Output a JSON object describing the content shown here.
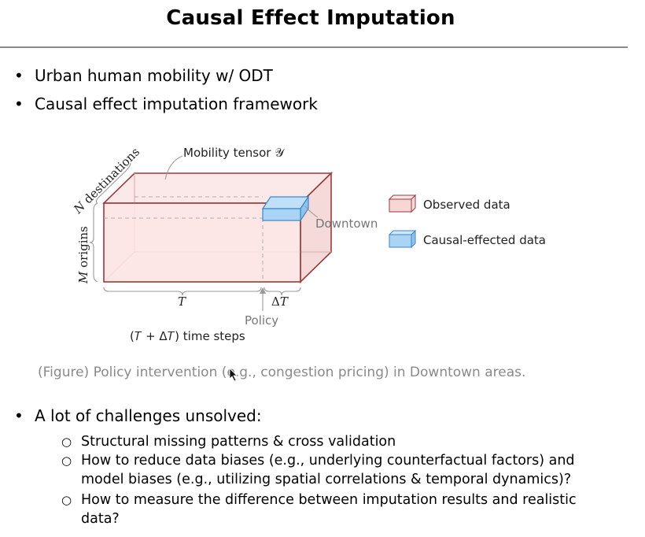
{
  "slide": {
    "title": "Causal Effect Imputation",
    "bullets": [
      "Urban human mobility w/ ODT",
      "Causal effect imputation framework"
    ],
    "bullet_symbol": "•",
    "sub_symbol": "○",
    "figure": {
      "tensor_label": "Mobility tensor 𝒴",
      "destinations_label": "𝑁 destinations",
      "origins_label": "𝑀 origins",
      "t_label": "𝑇",
      "delta_t_label": "Δ𝑇",
      "policy_label": "Policy",
      "time_steps_label": "(𝑇 + Δ𝑇) time steps",
      "downtown_label": "Downtown",
      "legend": [
        {
          "label": "Observed data",
          "color": "#f7d6d6",
          "stroke": "#9b3a3a"
        },
        {
          "label": "Causal-effected data",
          "color": "#a9d4f5",
          "stroke": "#3d86c6"
        }
      ]
    },
    "caption": "(Figure) Policy intervention (e.g., congestion pricing) in Downtown areas.",
    "challenges": {
      "heading": "A lot of challenges unsolved:",
      "items": [
        [
          "Structural missing patterns & cross validation"
        ],
        [
          "How to reduce data biases (e.g., underlying counterfactual factors) and",
          "model biases (e.g., utilizing spatial correlations & temporal dynamics)?"
        ],
        [
          "How to measure the difference between imputation results and realistic",
          "data?"
        ]
      ]
    }
  }
}
